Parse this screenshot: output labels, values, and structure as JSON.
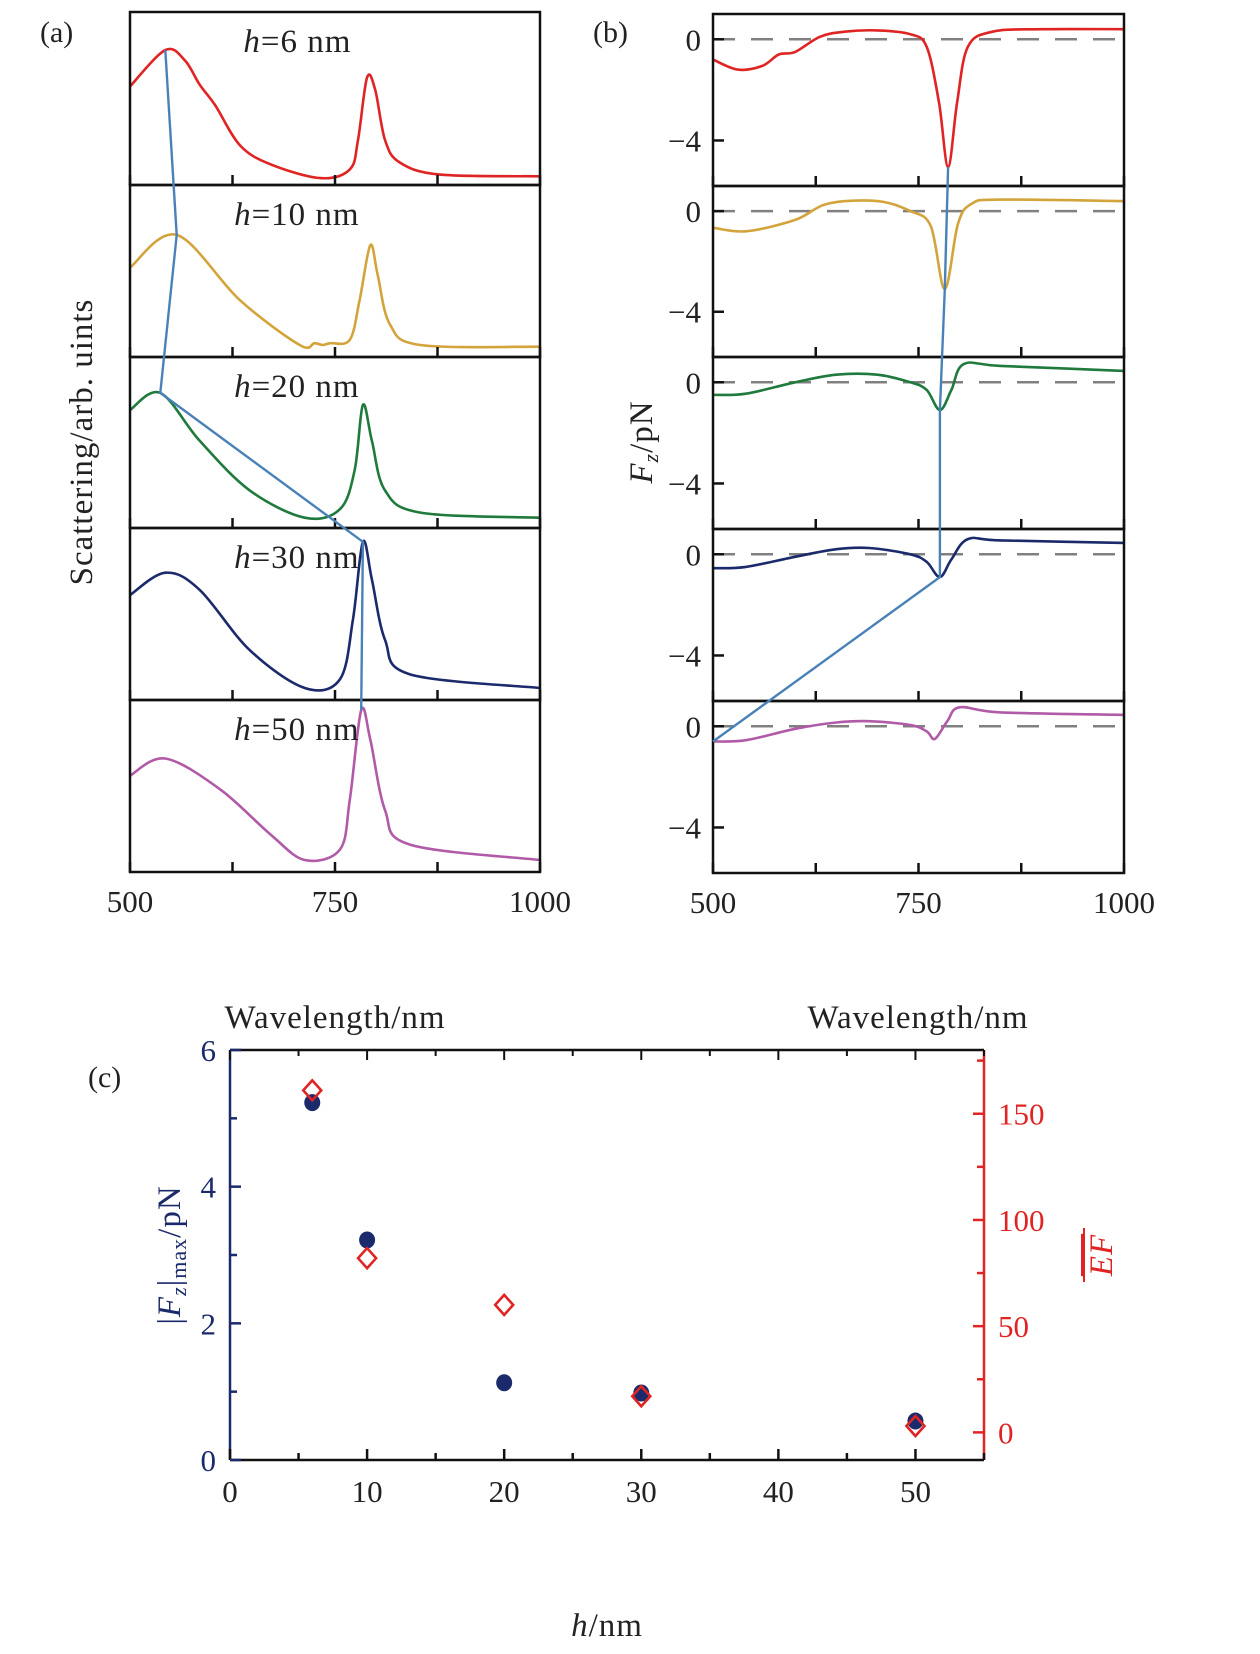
{
  "chart_data": [
    {
      "panel": "(a)",
      "type": "line",
      "xlabel": "Wavelength/nm",
      "ylabel": "Scattering/arb. uints",
      "xlim": [
        500,
        1000
      ],
      "xticks": [
        500,
        750,
        1000
      ],
      "xminor": [
        625,
        875
      ],
      "ylim": [
        0,
        1
      ],
      "peak_line_color": "#4a82b8",
      "series": [
        {
          "label": {
            "var": "h",
            "rest": "=6 nm"
          },
          "color": "#e02424",
          "x": [
            500,
            543,
            567,
            585,
            604,
            634,
            671,
            732,
            768,
            778,
            789,
            799,
            811,
            829,
            878,
            1000
          ],
          "y": [
            0.57,
            0.78,
            0.72,
            0.58,
            0.46,
            0.23,
            0.12,
            0.04,
            0.09,
            0.26,
            0.62,
            0.55,
            0.26,
            0.13,
            0.06,
            0.05
          ]
        },
        {
          "label": {
            "var": "h",
            "rest": "=10 nm"
          },
          "color": "#d4a43c",
          "x": [
            500,
            557,
            634,
            707,
            725,
            735,
            744,
            768,
            780,
            793,
            802,
            817,
            854,
            1000
          ],
          "y": [
            0.52,
            0.71,
            0.33,
            0.07,
            0.08,
            0.07,
            0.08,
            0.1,
            0.33,
            0.65,
            0.48,
            0.19,
            0.07,
            0.06
          ]
        },
        {
          "label": {
            "var": "h",
            "rest": "=20 nm"
          },
          "color": "#1f7a3c",
          "x": [
            500,
            537,
            585,
            646,
            713,
            756,
            774,
            784,
            795,
            811,
            854,
            1000
          ],
          "y": [
            0.69,
            0.79,
            0.51,
            0.22,
            0.06,
            0.11,
            0.34,
            0.72,
            0.51,
            0.22,
            0.09,
            0.06
          ]
        },
        {
          "label": {
            "var": "h",
            "rest": "=30 nm"
          },
          "color": "#1b2a6b",
          "x": [
            500,
            543,
            585,
            646,
            713,
            756,
            772,
            784,
            795,
            811,
            841,
            1000
          ],
          "y": [
            0.61,
            0.74,
            0.64,
            0.29,
            0.07,
            0.12,
            0.47,
            0.92,
            0.7,
            0.35,
            0.15,
            0.07
          ]
        },
        {
          "label": {
            "var": "h",
            "rest": "=50 nm"
          },
          "color": "#b05aa8",
          "x": [
            500,
            543,
            610,
            671,
            713,
            756,
            768,
            782,
            793,
            811,
            841,
            1000
          ],
          "y": [
            0.56,
            0.66,
            0.48,
            0.22,
            0.07,
            0.13,
            0.42,
            0.94,
            0.77,
            0.36,
            0.16,
            0.07
          ]
        }
      ]
    },
    {
      "panel": "(b)",
      "type": "line",
      "xlabel": "Wavelength/nm",
      "ylabel": {
        "var": "F",
        "sub": "z",
        "rest": "/pN"
      },
      "xlim": [
        500,
        1000
      ],
      "xticks": [
        500,
        750,
        1000
      ],
      "xminor": [
        625,
        875
      ],
      "ylim": [
        -5.8,
        1.0
      ],
      "yticks": [
        0,
        -4
      ],
      "zero_line": "dashed",
      "zero_line_color": "#808080",
      "peak_line_color": "#4a82b8",
      "series": [
        {
          "color": "#e02424",
          "x": [
            500,
            530,
            560,
            580,
            600,
            630,
            660,
            700,
            740,
            760,
            775,
            786,
            797,
            810,
            840,
            900,
            1000
          ],
          "y": [
            -0.8,
            -1.2,
            -1.05,
            -0.6,
            -0.5,
            0.1,
            0.3,
            0.35,
            0.2,
            -0.3,
            -2.5,
            -5.05,
            -2.5,
            -0.3,
            0.3,
            0.4,
            0.4
          ]
        },
        {
          "color": "#d4a43c",
          "x": [
            500,
            540,
            600,
            640,
            700,
            740,
            765,
            782,
            798,
            815,
            850,
            1000
          ],
          "y": [
            -0.66,
            -0.8,
            -0.35,
            0.3,
            0.4,
            0.0,
            -0.6,
            -3.1,
            -0.5,
            0.3,
            0.46,
            0.4
          ]
        },
        {
          "color": "#1f7a3c",
          "x": [
            500,
            540,
            600,
            650,
            700,
            740,
            760,
            776,
            790,
            805,
            850,
            1000
          ],
          "y": [
            -0.5,
            -0.45,
            0.0,
            0.3,
            0.3,
            0.0,
            -0.3,
            -1.1,
            -0.3,
            0.72,
            0.65,
            0.45
          ]
        },
        {
          "color": "#1b2a6b",
          "x": [
            500,
            540,
            600,
            650,
            690,
            740,
            760,
            776,
            790,
            810,
            850,
            1000
          ],
          "y": [
            -0.55,
            -0.5,
            -0.1,
            0.2,
            0.25,
            0.0,
            -0.3,
            -0.9,
            -0.2,
            0.6,
            0.55,
            0.45
          ]
        },
        {
          "color": "#b05aa8",
          "x": [
            500,
            540,
            600,
            650,
            690,
            740,
            760,
            770,
            785,
            800,
            850,
            1000
          ],
          "y": [
            -0.6,
            -0.55,
            -0.1,
            0.15,
            0.2,
            0.05,
            -0.2,
            -0.5,
            0.2,
            0.75,
            0.55,
            0.45
          ]
        }
      ]
    },
    {
      "panel": "(c)",
      "type": "scatter",
      "xlabel": {
        "var": "h",
        "rest": "/nm"
      },
      "xlim": [
        0,
        55
      ],
      "xticks": [
        0,
        10,
        20,
        30,
        40,
        50
      ],
      "ylabel_left": {
        "open": "|",
        "var": "F",
        "sub": "z",
        "close": "|",
        "sub2": "max",
        "rest": "/pN"
      },
      "ylabel_right": "EF",
      "ylim_left": [
        0,
        6
      ],
      "yticks_left": [
        0,
        2,
        4,
        6
      ],
      "ylim_right": [
        -13,
        180
      ],
      "yticks_right": [
        0,
        50,
        100,
        150
      ],
      "left_color": "#1b2a6b",
      "right_color": "#e02424",
      "series": [
        {
          "axis": "left",
          "marker": "filled-circle",
          "color": "#1b2a6b",
          "x": [
            6,
            10,
            20,
            30,
            50
          ],
          "y": [
            5.23,
            3.22,
            1.13,
            0.98,
            0.57
          ]
        },
        {
          "axis": "right",
          "marker": "open-diamond",
          "color": "#e02424",
          "x": [
            6,
            10,
            20,
            30,
            50
          ],
          "y": [
            161,
            82,
            60,
            17,
            3
          ]
        }
      ]
    }
  ]
}
